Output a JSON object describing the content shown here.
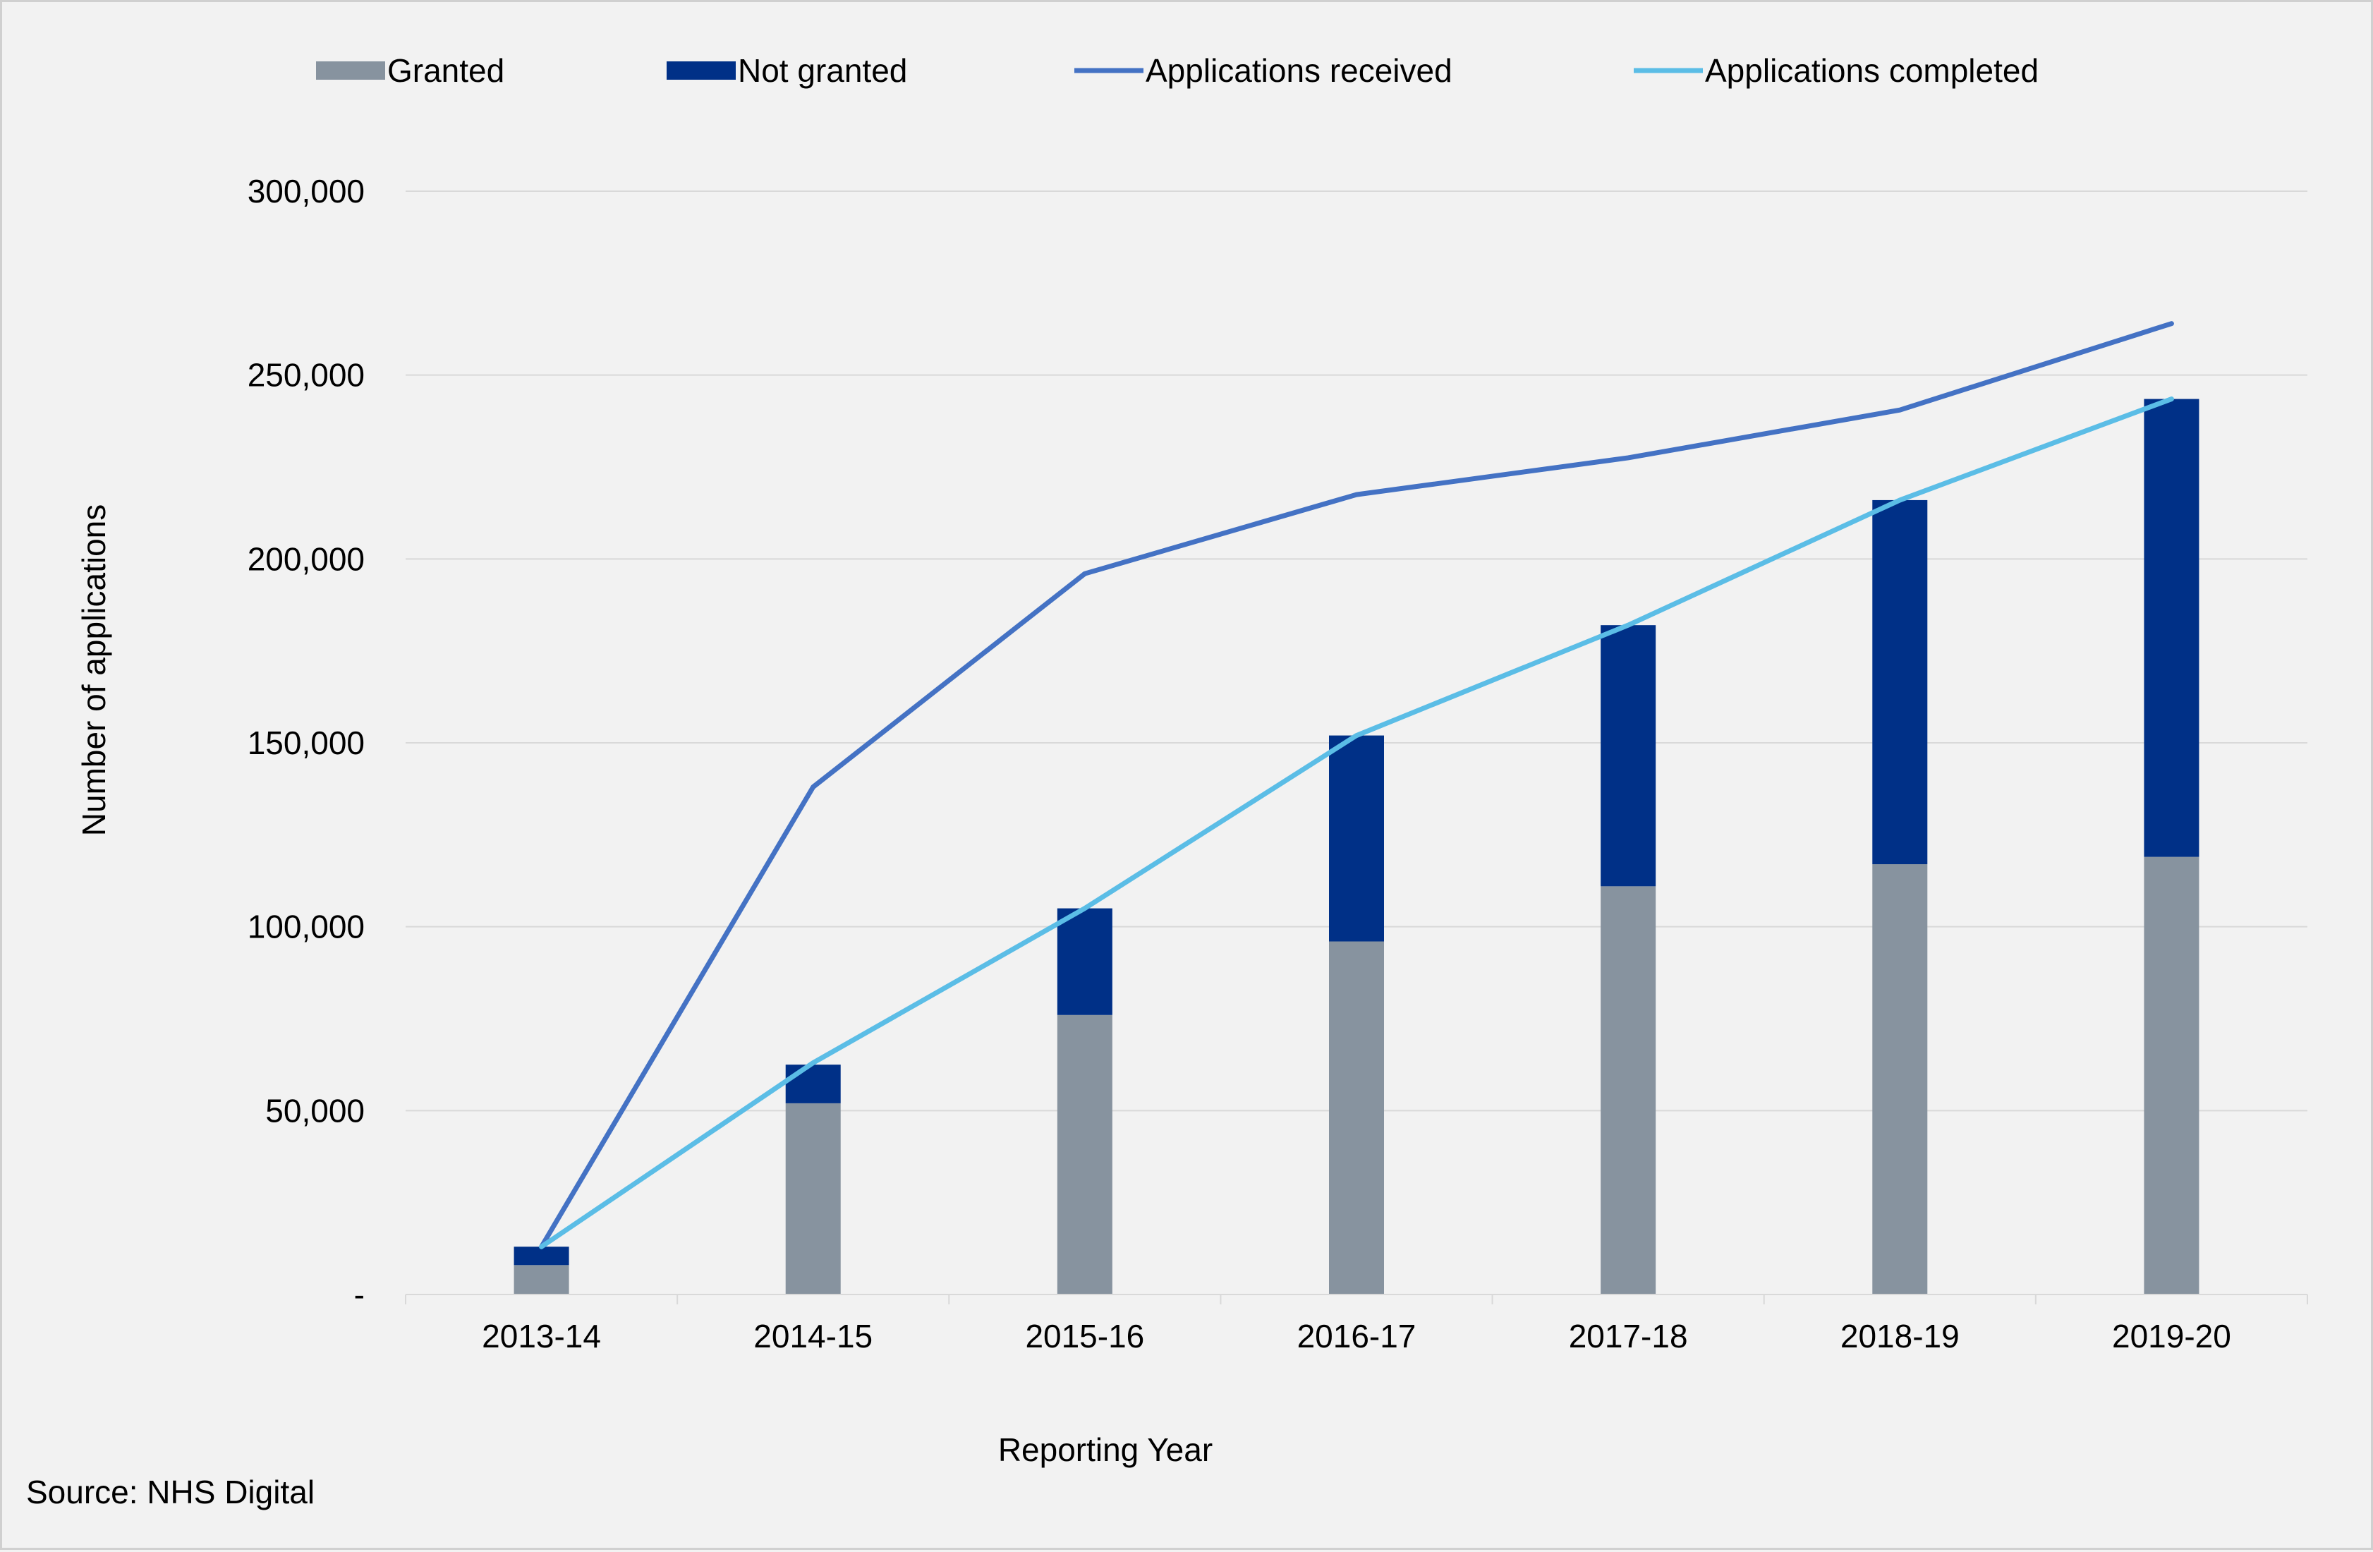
{
  "chart_data": {
    "type": "bar",
    "stacked": true,
    "categories": [
      "2013-14",
      "2014-15",
      "2015-16",
      "2016-17",
      "2017-18",
      "2018-19",
      "2019-20"
    ],
    "series": [
      {
        "name": "Granted",
        "kind": "bar",
        "color": "#87939f",
        "values": [
          8000,
          52000,
          76000,
          96000,
          111000,
          117000,
          119000
        ]
      },
      {
        "name": "Not granted",
        "kind": "bar",
        "color": "#003087",
        "values": [
          5000,
          10500,
          29000,
          56000,
          71000,
          99000,
          124500
        ]
      },
      {
        "name": "Applications received",
        "kind": "line",
        "color": "#4472c4",
        "values": [
          13000,
          138000,
          196000,
          217500,
          227500,
          240500,
          264000
        ]
      },
      {
        "name": "Applications completed",
        "kind": "line",
        "color": "#5bbde6",
        "values": [
          13000,
          63000,
          105000,
          152000,
          182000,
          216000,
          243500
        ]
      }
    ],
    "ylim": [
      0,
      300000
    ],
    "yticks": [
      0,
      50000,
      100000,
      150000,
      200000,
      250000,
      300000
    ],
    "ytick_labels": [
      "-",
      "50,000",
      "100,000",
      "150,000",
      "200,000",
      "250,000",
      "300,000"
    ],
    "xlabel": "Reporting Year",
    "ylabel": "Number of applications",
    "grid": true,
    "legend_position": "top",
    "source": "Source: NHS Digital"
  }
}
